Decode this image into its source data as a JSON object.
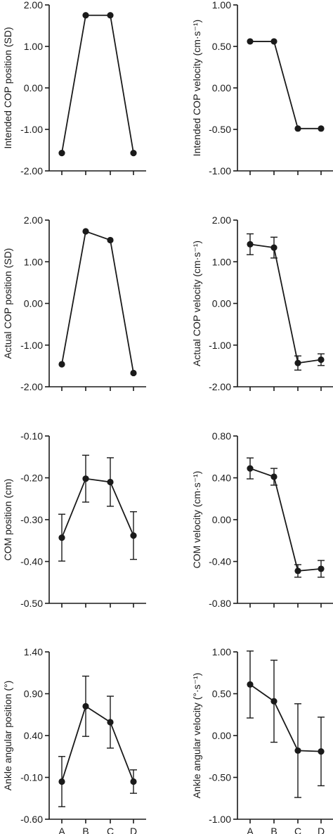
{
  "chart_data": [
    {
      "type": "line",
      "ylabel": "Intended COP position (SD)",
      "categories": [
        "A",
        "B",
        "C",
        "D"
      ],
      "ylim": [
        -2.0,
        2.0
      ],
      "yticks": [
        "2.00",
        "1.00",
        "0.00",
        "-1.00",
        "-2.00"
      ],
      "values": [
        -1.57,
        1.75,
        1.75,
        -1.57
      ],
      "errors": null
    },
    {
      "type": "line",
      "ylabel": "Intended COP velocity (cm·s⁻¹)",
      "categories": [
        "A",
        "B",
        "C",
        "D"
      ],
      "ylim": [
        -1.0,
        1.0
      ],
      "yticks": [
        "1.00",
        "0.50",
        "0.00",
        "-0.50",
        "-1.00"
      ],
      "values": [
        0.56,
        0.56,
        -0.49,
        -0.49
      ],
      "errors": null
    },
    {
      "type": "line",
      "ylabel": "Actual COP position (SD)",
      "categories": [
        "A",
        "B",
        "C",
        "D"
      ],
      "ylim": [
        -2.0,
        2.0
      ],
      "yticks": [
        "2.00",
        "1.00",
        "0.00",
        "-1.00",
        "-2.00"
      ],
      "values": [
        -1.46,
        1.73,
        1.52,
        -1.67
      ],
      "errors": null
    },
    {
      "type": "line",
      "ylabel": "Actual COP velocity (cm·s⁻¹)",
      "categories": [
        "A",
        "B",
        "C",
        "D"
      ],
      "ylim": [
        -2.0,
        2.0
      ],
      "yticks": [
        "2.00",
        "1.00",
        "0.00",
        "-1.00",
        "-2.00"
      ],
      "values": [
        1.42,
        1.34,
        -1.43,
        -1.35
      ],
      "errors": [
        0.25,
        0.25,
        0.17,
        0.14
      ]
    },
    {
      "type": "line",
      "ylabel": "COM position (cm)",
      "categories": [
        "A",
        "B",
        "C",
        "D"
      ],
      "ylim": [
        -0.5,
        -0.1
      ],
      "yticks": [
        "-0.10",
        "-0.20",
        "-0.30",
        "-0.40",
        "-0.50"
      ],
      "values": [
        -0.343,
        -0.202,
        -0.21,
        -0.338
      ],
      "errors": [
        0.056,
        0.056,
        0.058,
        0.057
      ]
    },
    {
      "type": "line",
      "ylabel": "COM velocity (cm·s⁻¹)",
      "categories": [
        "A",
        "B",
        "C",
        "D"
      ],
      "ylim": [
        -0.8,
        0.8
      ],
      "yticks": [
        "0.80",
        "0.40",
        "0.00",
        "-0.40",
        "-0.80"
      ],
      "values": [
        0.49,
        0.41,
        -0.49,
        -0.47
      ],
      "errors": [
        0.1,
        0.08,
        0.06,
        0.08
      ]
    },
    {
      "type": "line",
      "ylabel": "Ankle angular position (°)",
      "categories": [
        "A",
        "B",
        "C",
        "D"
      ],
      "ylim": [
        -0.6,
        1.4
      ],
      "yticks": [
        "1.40",
        "0.90",
        "0.40",
        "-0.10",
        "-0.60"
      ],
      "values": [
        -0.15,
        0.75,
        0.56,
        -0.15
      ],
      "errors": [
        0.3,
        0.36,
        0.31,
        0.14
      ]
    },
    {
      "type": "line",
      "ylabel": "Ankle angular velocity (°·s⁻¹)",
      "categories": [
        "A",
        "B",
        "C",
        "D"
      ],
      "ylim": [
        -1.0,
        1.0
      ],
      "yticks": [
        "1.00",
        "0.50",
        "0.00",
        "-0.50",
        "-1.00"
      ],
      "values": [
        0.61,
        0.41,
        -0.18,
        -0.19
      ],
      "errors": [
        0.4,
        0.49,
        0.56,
        0.41
      ]
    }
  ]
}
